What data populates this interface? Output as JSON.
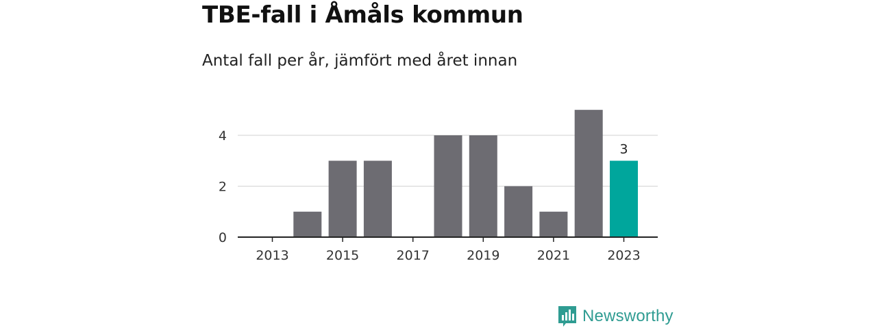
{
  "header": {
    "title": "TBE-fall i Åmåls kommun",
    "subtitle": "Antal fall per år, jämfört med året innan"
  },
  "brand": {
    "name": "Newsworthy",
    "logo_icon": "bar-chart-speech-bubble-icon"
  },
  "colors": {
    "bar": "#6d6c72",
    "highlight": "#00a69c",
    "grid": "#d9d9d9",
    "axis": "#222222",
    "brand": "#2f9c92"
  },
  "chart_data": {
    "type": "bar",
    "categories": [
      "2013",
      "2014",
      "2015",
      "2016",
      "2017",
      "2018",
      "2019",
      "2020",
      "2021",
      "2022",
      "2023"
    ],
    "values": [
      0,
      1,
      3,
      3,
      0,
      4,
      4,
      2,
      1,
      5,
      3
    ],
    "highlight_index": 10,
    "highlight_label": "3",
    "x_tick_labels": [
      "2013",
      "2015",
      "2017",
      "2019",
      "2021",
      "2023"
    ],
    "y_ticks": [
      0,
      2,
      4
    ],
    "ylim": [
      0,
      5
    ],
    "grid": true,
    "legend": "none"
  }
}
